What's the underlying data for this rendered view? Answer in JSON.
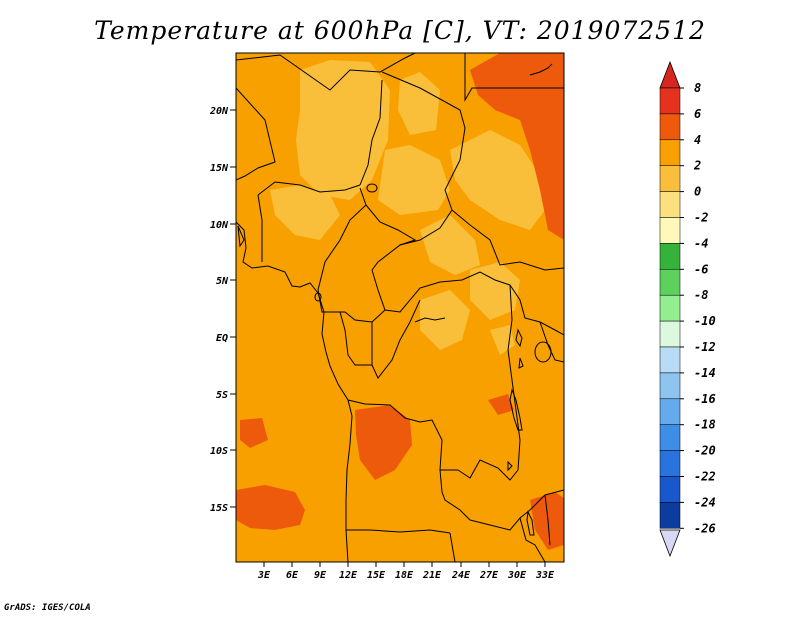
{
  "title": "Temperature at 600hPa [C], VT: 2019072512",
  "credit": "GrADS: IGES/COLA",
  "axes": {
    "lat_labels": [
      "20N",
      "15N",
      "10N",
      "5N",
      "EQ",
      "5S",
      "10S",
      "15S"
    ],
    "lon_labels": [
      "3E",
      "6E",
      "9E",
      "12E",
      "15E",
      "18E",
      "21E",
      "24E",
      "27E",
      "30E",
      "33E"
    ]
  },
  "colorbar": {
    "labels": [
      "8",
      "6",
      "4",
      "2",
      "0",
      "-2",
      "-4",
      "-6",
      "-8",
      "-10",
      "-12",
      "-14",
      "-16",
      "-18",
      "-20",
      "-22",
      "-24",
      "-26"
    ],
    "colors": [
      "#e4321e",
      "#ee5a0c",
      "#f7a000",
      "#fabf3a",
      "#fde07e",
      "#fff8b8",
      "#34b23a",
      "#5cd25c",
      "#92ee8e",
      "#dcf8de",
      "#b8dcf6",
      "#90c4f0",
      "#66aaee",
      "#3c8ee6",
      "#2a72de",
      "#1858cc",
      "#0c3c9e",
      "#0a1a70",
      "#d8d8f4"
    ],
    "top_triangle_color": "#d7261f",
    "bottom_triangle_color": "#d8d8f4"
  },
  "field": {
    "background_color": "#f7a000",
    "warm_patch_color": "#ee5a0c",
    "cool_patch_color": "#fabf3a"
  }
}
